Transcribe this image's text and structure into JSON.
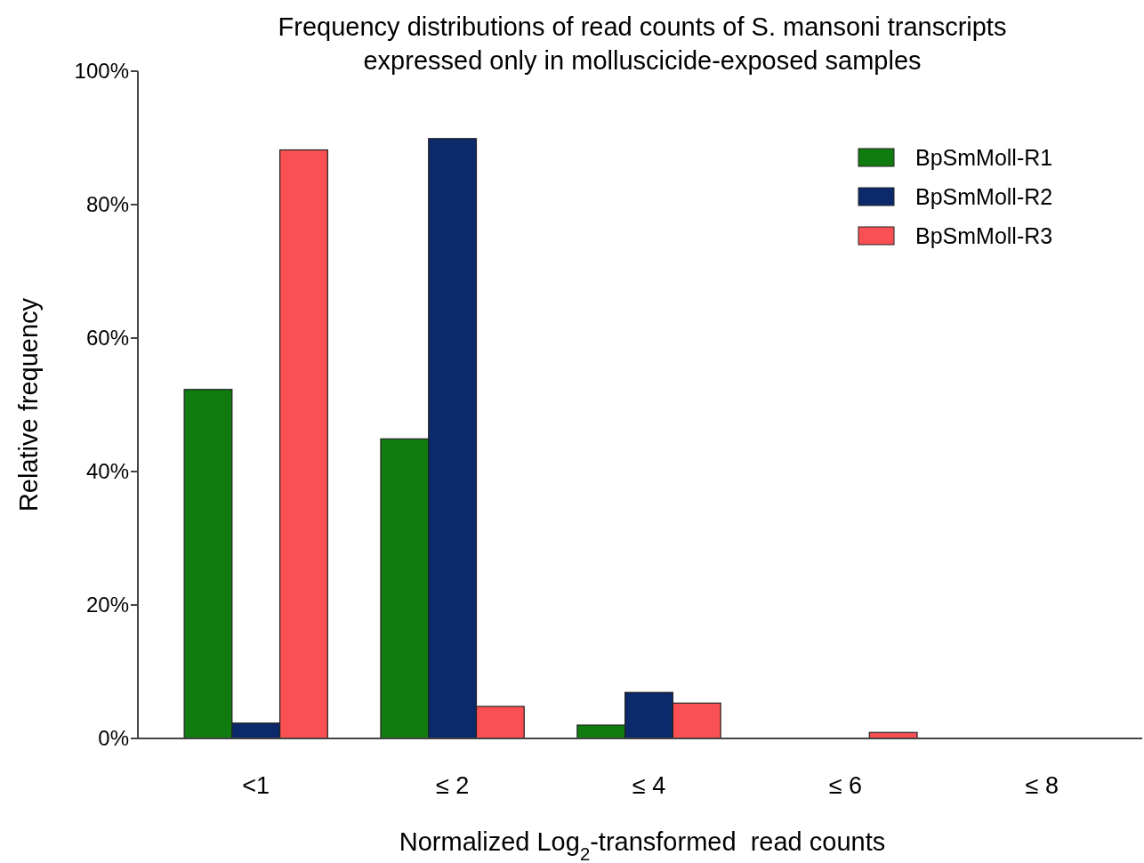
{
  "chart_data": {
    "type": "bar",
    "title": "Frequency distributions of read counts of S. mansoni transcripts expressed only in molluscicide-exposed samples",
    "xlabel": "Normalized Log$_{2}$-transformed  read counts",
    "ylabel": "Relative frequency",
    "categories": [
      "<1",
      "≤ 2",
      "≤ 4",
      "≤ 6",
      "≤ 8"
    ],
    "series": [
      {
        "name": "BpSmMoll-R1",
        "color": "#107c10",
        "values": [
          52.3,
          44.9,
          2.0,
          0,
          0
        ]
      },
      {
        "name": "BpSmMoll-R2",
        "color": "#0c2a6b",
        "values": [
          2.3,
          89.9,
          6.9,
          0,
          0
        ]
      },
      {
        "name": "BpSmMoll-R3",
        "color": "#fa5053",
        "values": [
          88.2,
          4.8,
          5.3,
          0.9,
          0
        ]
      }
    ],
    "ylim": [
      0,
      100
    ],
    "yticks": [
      {
        "value": 0,
        "label": "0%"
      },
      {
        "value": 20,
        "label": "20%"
      },
      {
        "value": 40,
        "label": "40%"
      },
      {
        "value": 60,
        "label": "60%"
      },
      {
        "value": 80,
        "label": "80%"
      },
      {
        "value": 100,
        "label": "100%"
      }
    ],
    "legend": "top right",
    "grid": false
  }
}
